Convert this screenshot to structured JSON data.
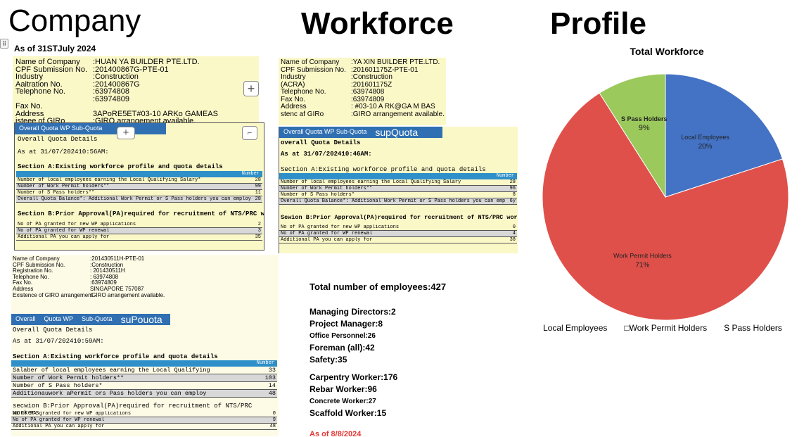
{
  "titles": {
    "company": "Company",
    "workforce": "Workforce",
    "profile": "Profile"
  },
  "as_of_top": "As of 31STJuly 2024",
  "card1": {
    "rows": [
      {
        "k": "Name of Company",
        "v": ":HUAN YA BUILDER PTE.LTD."
      },
      {
        "k": "CPF Submission No.",
        "v": ":201400867G-PTE-01"
      },
      {
        "k": "Industry",
        "v": ":Construction"
      },
      {
        "k": "Aaitration No.",
        "v": ":201400867G"
      },
      {
        "k": "Telephone No.",
        "v": ":63974808"
      },
      {
        "k": "",
        "v": ":63974809"
      },
      {
        "k": "Fax No.",
        "v": ""
      },
      {
        "k": "Address",
        "v": "3APoRE5ET#03-10 ARKo GAMEAS"
      },
      {
        "k": "isteee of GIRo",
        "v": ":GIRO arrangement available."
      }
    ]
  },
  "card2": {
    "rows": [
      {
        "k": "Name of Company",
        "v": ":YA XIN BUILDER PTE.LTD."
      },
      {
        "k": "CPF Submission No.",
        "v": ":201601175Z-PTE-01"
      },
      {
        "k": "Industry",
        "v": ":Construction"
      },
      {
        "k": "(ACRA)",
        "v": ":201601175Z"
      },
      {
        "k": "Telephone No.",
        "v": ":63974808"
      },
      {
        "k": "Fax No.",
        "v": ":63974809"
      },
      {
        "k": "Address",
        "v": ": #03-10 A RK@GA M BAS"
      },
      {
        "k": "stenc af GIRo",
        "v": ":GIRO arrangement available."
      }
    ]
  },
  "card3": {
    "rows": [
      {
        "k": "Name of Company",
        "v": ":201430511H-PTE-01"
      },
      {
        "k": "CPF Submission No.",
        "v": ":Construction"
      },
      {
        "k": "Registration No.",
        "v": ": 201430511H"
      },
      {
        "k": "Telephone No.",
        "v": ": 63974808"
      },
      {
        "k": "Fax No.",
        "v": ":63974809"
      },
      {
        "k": "Address",
        "v": "SINGAPORE 757087"
      },
      {
        "k": "Existence of GIRO arrangement",
        "v": ":GIRO arrangement available."
      }
    ]
  },
  "quota1": {
    "tabs": [
      "Overall Quota WP Sub-Quota"
    ],
    "heading": "Overall Quota Details",
    "as_at": "As at 31/07/202410:56AM:",
    "section_a": "Section A:Existing workforce profile and quota details",
    "number_header": "Number",
    "rows_a": [
      {
        "label": "Number of local employees earning the Local Qualifying Salary*",
        "value": "28"
      },
      {
        "label": "Number of Work Permit holders**",
        "value": "99"
      },
      {
        "label": "Number of S Pass holders**",
        "value": "11"
      },
      {
        "label": "Overall Quota Balance*: Additional Work Permit or S Pass holders you can employ",
        "value": "28"
      }
    ],
    "section_b": "Section B:Prior Approval(PA)required for recruitment of NTS/PRC workers",
    "rows_b": [
      {
        "label": "No of PA granted for new WP applications",
        "value": "2"
      },
      {
        "label": "No of PA granted for WP renewal",
        "value": "3"
      },
      {
        "label": "Additional PA you can apply for",
        "value": "35"
      }
    ]
  },
  "quota2": {
    "tabs": [
      "Overall Quota WP Sub-Quota",
      "supQuota"
    ],
    "heading": "overall Quota Details",
    "as_at": "As at 31/07/202410:46AM:",
    "section_a": "Section A:Existing workforce profile and quota details",
    "number_header": "Number",
    "rows_a": [
      {
        "label": "Number of local employees earning the Local Qualifying Salary",
        "value": "28"
      },
      {
        "label": "Number of Work Permit holders**",
        "value": "96"
      },
      {
        "label": "Number of S Pass holders*",
        "value": "8"
      },
      {
        "label": "Overall Quota Balance*: Additional Work Permit or S Pass holders you can employ",
        "value": "6y"
      }
    ],
    "section_b": "Sewion B:Prior Approval(PA)required for recruitment of NTS/PRC workers",
    "rows_b": [
      {
        "label": "No of PA granted for new WP applications",
        "value": "0"
      },
      {
        "label": "No of PA granted for WP renewal",
        "value": "4"
      },
      {
        "label": "Additional PA you can apply for",
        "value": "38"
      }
    ]
  },
  "quota3": {
    "tabs": [
      "Overall",
      "Quota WP",
      "Sub-Quota",
      "suPouota"
    ],
    "heading": "Overall Quota Details",
    "as_at": "As at 31/07/202410:59AM:",
    "section_a": "Section A:Existing workforce profile and quota details",
    "number_header": "Number",
    "rows_a": [
      {
        "label": "Salaber of local employees earning the Local Qualifying",
        "value": "33"
      },
      {
        "label": "Number of Work Permit holders**",
        "value": "103"
      },
      {
        "label": "Number of S Pass holders*",
        "value": "14"
      },
      {
        "label": "Additionauwork aPermit ors Pass holders you can employ",
        "value": "48"
      }
    ],
    "section_b": "secwion B:Prior Approval(PA)required for recruitment of NTS/PRC workers",
    "rows_b": [
      {
        "label": "No of PA granted for new WP applications",
        "value": "0"
      },
      {
        "label": "No of PA granted for WP renewal",
        "value": "9"
      },
      {
        "label": "Additional PA you can apply for",
        "value": "48"
      }
    ]
  },
  "stats": {
    "total": "Total number of employees:427",
    "lines": [
      "Managing Directors:2",
      "Project Manager:8",
      "Office Personnel:26",
      "Foreman (all):42",
      "Safety:35",
      "Carpentry Worker:176",
      "Rebar Worker:96",
      "Concrete Worker:27",
      "Scaffold Worker:15"
    ],
    "as_of": "As of 8/8/2024"
  },
  "chart_data": {
    "type": "pie",
    "title": "Total Workforce",
    "categories": [
      "Local Employees",
      "Work Permit Holders",
      "S Pass Holders"
    ],
    "values": [
      20,
      71,
      9
    ],
    "labels": [
      "20%",
      "71%",
      "9%"
    ],
    "colors": [
      "#4472c4",
      "#e0504a",
      "#9bc95c"
    ],
    "legend": [
      "Local Employees",
      "□Work Permit Holders",
      "S Pass Holders"
    ],
    "legend_position": "bottom"
  }
}
